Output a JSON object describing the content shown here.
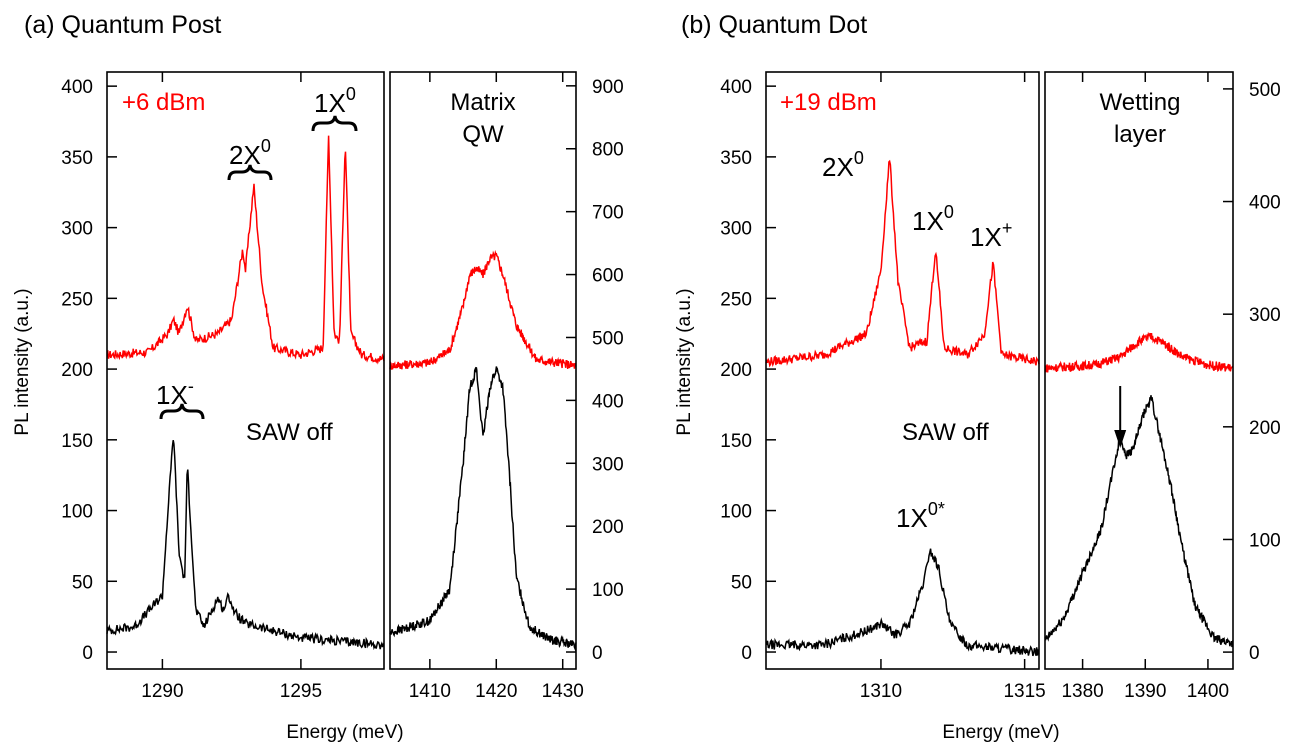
{
  "chart_data": [
    {
      "type": "line",
      "title": "(a) Quantum Post",
      "ylabel": "PL intensity (a.u.)",
      "xlabel": "Energy (meV)",
      "left_panel": {
        "xlim": [
          1288,
          1298
        ],
        "ylim": [
          -12,
          410
        ],
        "xticks": [
          1290,
          1295
        ],
        "yticks": [
          0,
          50,
          100,
          150,
          200,
          250,
          300,
          350,
          400
        ]
      },
      "right_panel": {
        "xlim": [
          1404,
          1432
        ],
        "xticks": [
          1410,
          1420,
          1430
        ],
        "right_axis": {
          "ylim": [
            -27,
            922
          ],
          "yticks": [
            0,
            100,
            200,
            300,
            400,
            500,
            600,
            700,
            800,
            900
          ]
        }
      },
      "series": [
        {
          "label": "+6 dBm",
          "color": "#ff0000",
          "left_x": [
            1288.0,
            1289.5,
            1290.2,
            1290.4,
            1290.6,
            1290.9,
            1291.2,
            1292.0,
            1292.5,
            1292.9,
            1293.0,
            1293.3,
            1293.6,
            1294.0,
            1295.0,
            1295.8,
            1296.0,
            1296.2,
            1296.4,
            1296.6,
            1296.8,
            1297.2,
            1298.0
          ],
          "left_y": [
            210,
            212,
            225,
            235,
            225,
            245,
            220,
            225,
            235,
            285,
            270,
            330,
            260,
            215,
            210,
            215,
            365,
            225,
            220,
            362,
            225,
            210,
            207
          ],
          "right_x": [
            1404,
            1410,
            1413,
            1415,
            1416,
            1417,
            1418,
            1419,
            1420,
            1421,
            1423,
            1426,
            1432
          ],
          "right_y": [
            455,
            460,
            480,
            550,
            600,
            610,
            600,
            625,
            630,
            600,
            520,
            465,
            455
          ]
        },
        {
          "label": "SAW off",
          "color": "#000000",
          "left_x": [
            1288.0,
            1289.0,
            1290.0,
            1290.2,
            1290.4,
            1290.6,
            1290.8,
            1290.9,
            1291.2,
            1291.5,
            1292.0,
            1292.2,
            1292.4,
            1292.6,
            1293.0,
            1295.0,
            1298.0
          ],
          "left_y": [
            15,
            18,
            40,
            100,
            155,
            70,
            50,
            132,
            30,
            18,
            38,
            30,
            40,
            28,
            20,
            10,
            5
          ],
          "right_x": [
            1404,
            1410,
            1413,
            1415,
            1416,
            1417,
            1418,
            1419,
            1420,
            1421,
            1422,
            1423,
            1425,
            1428,
            1432
          ],
          "right_y": [
            30,
            50,
            100,
            300,
            420,
            450,
            340,
            420,
            450,
            420,
            280,
            120,
            40,
            20,
            10
          ]
        }
      ],
      "annotations": {
        "power": "+6 dBm",
        "saw_off": "SAW off",
        "biexciton": {
          "base": "2X",
          "sup": "0"
        },
        "exciton": {
          "base": "1X",
          "sup": "0"
        },
        "trion": {
          "base": "1X",
          "sup": "-"
        },
        "matrix_line1": "Matrix",
        "matrix_line2": "QW"
      }
    },
    {
      "type": "line",
      "title": "(b) Quantum Dot",
      "ylabel": "PL intensity (a.u.)",
      "xlabel": "Energy (meV)",
      "left_panel": {
        "xlim": [
          1306,
          1315.5
        ],
        "ylim": [
          -12,
          410
        ],
        "xticks": [
          1310,
          1315
        ],
        "yticks": [
          0,
          50,
          100,
          150,
          200,
          250,
          300,
          350,
          400
        ]
      },
      "right_panel": {
        "xlim": [
          1374,
          1404
        ],
        "xticks": [
          1380,
          1390,
          1400
        ],
        "right_axis": {
          "ylim": [
            -15,
            515
          ],
          "yticks": [
            0,
            100,
            200,
            300,
            400,
            500
          ]
        }
      },
      "series": [
        {
          "label": "+19 dBm",
          "color": "#ff0000",
          "left_x": [
            1306.0,
            1308.0,
            1309.5,
            1310.0,
            1310.3,
            1310.6,
            1311.0,
            1311.6,
            1311.9,
            1312.2,
            1313.0,
            1313.6,
            1313.9,
            1314.2,
            1315.5
          ],
          "left_y": [
            205,
            210,
            225,
            270,
            350,
            260,
            215,
            220,
            285,
            215,
            210,
            225,
            275,
            210,
            205
          ],
          "right_x": [
            1374,
            1382,
            1386,
            1389,
            1391,
            1393,
            1396,
            1400,
            1404
          ],
          "right_y": [
            252,
            255,
            262,
            276,
            280,
            274,
            262,
            255,
            252
          ]
        },
        {
          "label": "SAW off",
          "color": "#000000",
          "left_x": [
            1306.0,
            1308.0,
            1309.5,
            1310.0,
            1310.5,
            1311.0,
            1311.5,
            1311.7,
            1312.0,
            1312.4,
            1313.0,
            1315.5
          ],
          "left_y": [
            5,
            5,
            15,
            20,
            12,
            20,
            50,
            72,
            60,
            20,
            5,
            0
          ],
          "right_x": [
            1374,
            1377,
            1380,
            1383,
            1385,
            1386,
            1387,
            1388,
            1390,
            1391,
            1392,
            1394,
            1396,
            1398,
            1401,
            1404
          ],
          "right_y": [
            10,
            30,
            70,
            110,
            165,
            190,
            175,
            180,
            215,
            225,
            200,
            150,
            90,
            40,
            12,
            8
          ]
        }
      ],
      "arrow_at_x": 1386,
      "annotations": {
        "power": "+19 dBm",
        "saw_off": "SAW off",
        "biexciton": {
          "base": "2X",
          "sup": "0"
        },
        "exciton": {
          "base": "1X",
          "sup": "0"
        },
        "positive_trion": {
          "base": "1X",
          "sup": "+"
        },
        "dark_exciton": {
          "base": "1X",
          "sup": "0*"
        },
        "wetting_line1": "Wetting",
        "wetting_line2": "layer"
      }
    }
  ]
}
